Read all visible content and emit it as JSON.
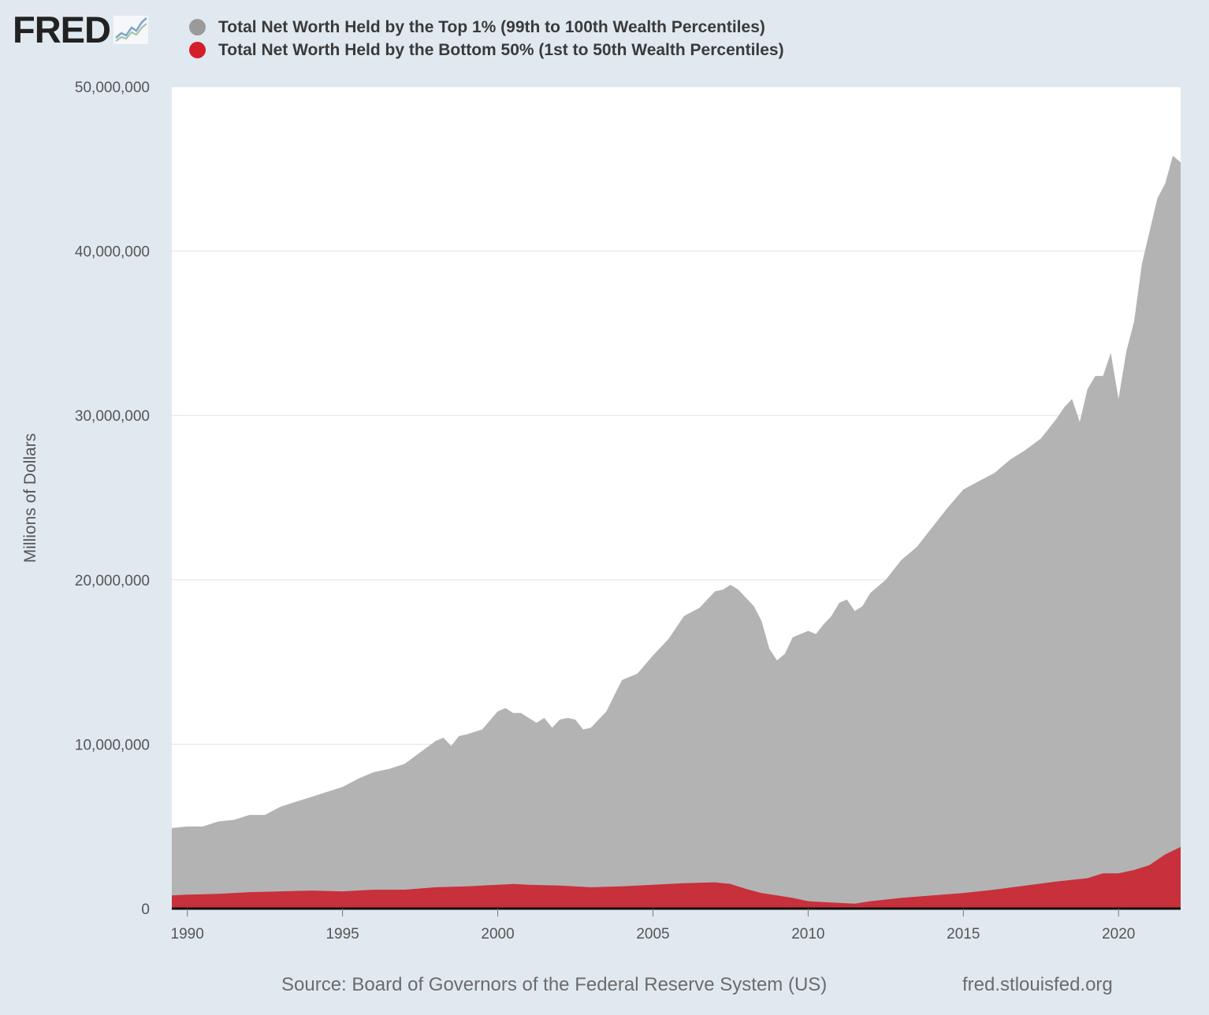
{
  "header": {
    "logo_text": "FRED",
    "logo_icon": "trend-line-icon"
  },
  "legend": [
    {
      "label": "Total Net Worth Held by the Top 1% (99th to 100th Wealth Percentiles)",
      "color": "#9a9a9a"
    },
    {
      "label": "Total Net Worth Held by the Bottom 50% (1st to 50th Wealth Percentiles)",
      "color": "#d21f2a"
    }
  ],
  "footer": {
    "source": "Source: Board of Governors of the Federal Reserve System (US)",
    "site": "fred.stlouisfed.org"
  },
  "chart_data": {
    "type": "area",
    "ylabel": "Millions of Dollars",
    "ylim": [
      0,
      50000000
    ],
    "xlim": [
      1989.5,
      2022.0
    ],
    "y_ticks": [
      "0",
      "10,000,000",
      "20,000,000",
      "30,000,000",
      "40,000,000",
      "50,000,000"
    ],
    "x_ticks": [
      "1990",
      "1995",
      "2000",
      "2005",
      "2010",
      "2015",
      "2020"
    ],
    "grid": true,
    "series": [
      {
        "name": "Total Net Worth Held by the Top 1% (99th to 100th Wealth Percentiles)",
        "color": "#b3b3b3",
        "x": [
          1989.5,
          1990.0,
          1990.5,
          1991.0,
          1991.5,
          1992.0,
          1992.5,
          1993.0,
          1993.5,
          1994.0,
          1994.5,
          1995.0,
          1995.5,
          1996.0,
          1996.5,
          1997.0,
          1997.5,
          1998.0,
          1998.25,
          1998.5,
          1998.75,
          1999.0,
          1999.5,
          2000.0,
          2000.25,
          2000.5,
          2000.75,
          2001.0,
          2001.25,
          2001.5,
          2001.75,
          2002.0,
          2002.25,
          2002.5,
          2002.75,
          2003.0,
          2003.5,
          2004.0,
          2004.5,
          2005.0,
          2005.5,
          2006.0,
          2006.5,
          2007.0,
          2007.25,
          2007.5,
          2007.75,
          2008.0,
          2008.25,
          2008.5,
          2008.75,
          2009.0,
          2009.25,
          2009.5,
          2010.0,
          2010.25,
          2010.5,
          2010.75,
          2011.0,
          2011.25,
          2011.5,
          2011.75,
          2012.0,
          2012.5,
          2013.0,
          2013.5,
          2014.0,
          2014.5,
          2015.0,
          2015.5,
          2016.0,
          2016.5,
          2017.0,
          2017.5,
          2018.0,
          2018.25,
          2018.5,
          2018.75,
          2019.0,
          2019.25,
          2019.5,
          2019.75,
          2020.0,
          2020.25,
          2020.5,
          2020.75,
          2021.0,
          2021.25,
          2021.5,
          2021.75,
          2022.0
        ],
        "values": [
          4900000,
          5000000,
          5000000,
          5300000,
          5400000,
          5700000,
          5700000,
          6200000,
          6500000,
          6800000,
          7100000,
          7400000,
          7900000,
          8300000,
          8500000,
          8800000,
          9500000,
          10200000,
          10400000,
          9900000,
          10500000,
          10600000,
          10900000,
          12000000,
          12200000,
          11900000,
          11900000,
          11600000,
          11300000,
          11600000,
          11000000,
          11500000,
          11600000,
          11500000,
          10900000,
          11000000,
          12000000,
          13900000,
          14300000,
          15400000,
          16400000,
          17800000,
          18300000,
          19300000,
          19400000,
          19700000,
          19400000,
          18900000,
          18400000,
          17500000,
          15800000,
          15100000,
          15500000,
          16500000,
          16900000,
          16700000,
          17300000,
          17800000,
          18600000,
          18800000,
          18100000,
          18400000,
          19200000,
          20000000,
          21200000,
          22000000,
          23200000,
          24400000,
          25500000,
          26000000,
          26500000,
          27300000,
          27900000,
          28600000,
          29800000,
          30500000,
          31000000,
          29600000,
          31600000,
          32400000,
          32400000,
          33800000,
          31000000,
          33900000,
          35700000,
          39200000,
          41200000,
          43200000,
          44100000,
          45800000,
          45400000
        ]
      },
      {
        "name": "Total Net Worth Held by the Bottom 50% (1st to 50th Wealth Percentiles)",
        "color": "#c8303c",
        "x": [
          1989.5,
          1990.0,
          1991.0,
          1992.0,
          1993.0,
          1994.0,
          1995.0,
          1996.0,
          1997.0,
          1998.0,
          1999.0,
          2000.0,
          2000.5,
          2001.0,
          2002.0,
          2003.0,
          2004.0,
          2005.0,
          2006.0,
          2007.0,
          2007.5,
          2008.0,
          2008.5,
          2009.0,
          2009.5,
          2010.0,
          2010.5,
          2011.0,
          2011.5,
          2012.0,
          2013.0,
          2014.0,
          2015.0,
          2016.0,
          2017.0,
          2018.0,
          2019.0,
          2019.5,
          2020.0,
          2020.5,
          2021.0,
          2021.5,
          2022.0
        ],
        "values": [
          800000,
          850000,
          900000,
          1000000,
          1050000,
          1100000,
          1050000,
          1150000,
          1150000,
          1300000,
          1350000,
          1450000,
          1500000,
          1450000,
          1400000,
          1300000,
          1350000,
          1450000,
          1550000,
          1600000,
          1500000,
          1200000,
          950000,
          800000,
          650000,
          450000,
          400000,
          350000,
          300000,
          450000,
          650000,
          800000,
          950000,
          1150000,
          1400000,
          1650000,
          1850000,
          2150000,
          2150000,
          2350000,
          2650000,
          3300000,
          3750000
        ]
      }
    ]
  }
}
